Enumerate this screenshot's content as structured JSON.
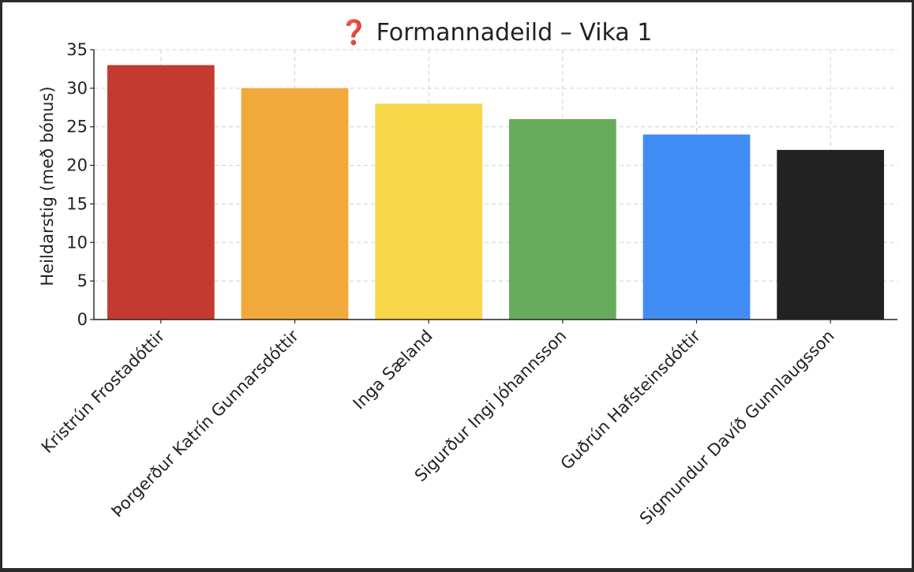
{
  "chart_data": {
    "type": "bar",
    "title": "❓ Formannadeild – Vika 1",
    "xlabel": "",
    "ylabel": "Heildarstig (með bónus)",
    "ylim": [
      0,
      35
    ],
    "yticks": [
      0,
      5,
      10,
      15,
      20,
      25,
      30,
      35
    ],
    "grid": true,
    "categories": [
      "Kristrún Frostadóttir",
      "Þorgerður Katrín Gunnarsdóttir",
      "Inga Sæland",
      "Sigurður Ingi Jóhannsson",
      "Guðrún Hafsteinsdóttir",
      "Sigmundur Davíð Gunnlaugsson"
    ],
    "values": [
      33,
      30,
      28,
      26,
      24,
      22
    ],
    "colors": [
      "#c43a31",
      "#f0a93a",
      "#f8d64a",
      "#66ac5b",
      "#418cf5",
      "#222222"
    ]
  }
}
